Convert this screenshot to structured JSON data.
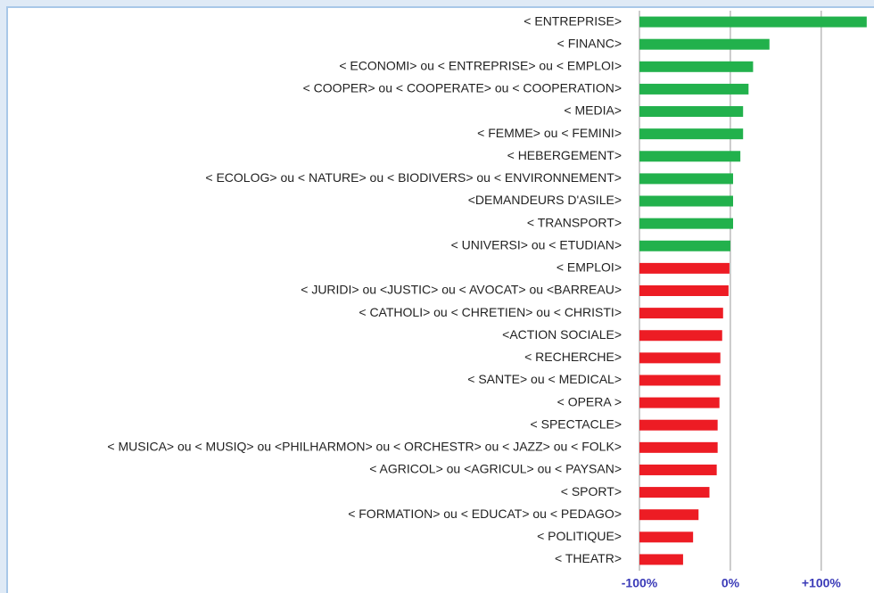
{
  "chart_data": {
    "type": "bar",
    "orientation": "horizontal",
    "categories": [
      "< ENTREPRISE>",
      "< FINANC>",
      "< ECONOMI> ou < ENTREPRISE> ou < EMPLOI>",
      "< COOPER> ou < COOPERATE> ou < COOPERATION>",
      "< MEDIA>",
      "< FEMME> ou < FEMINI>",
      "< HEBERGEMENT>",
      "< ECOLOG> ou < NATURE> ou < BIODIVERS> ou < ENVIRONNEMENT>",
      "<DEMANDEURS D'ASILE>",
      "< TRANSPORT>",
      "< UNIVERSI> ou < ETUDIAN>",
      "< EMPLOI>",
      "< JURIDI> ou <JUSTIC> ou < AVOCAT> ou <BARREAU>",
      "< CATHOLI> ou < CHRETIEN> ou < CHRISTI>",
      "<ACTION SOCIALE>",
      "< RECHERCHE>",
      "< SANTE> ou < MEDICAL>",
      "< OPERA >",
      "< SPECTACLE>",
      "< MUSICA> ou < MUSIQ> ou <PHILHARMON> ou < ORCHESTR> ou < JAZZ> ou < FOLK>",
      "< AGRICOL> ou <AGRICUL> ou < PAYSAN>",
      "< SPORT>",
      "< FORMATION> ou < EDUCAT> ou < PEDAGO>",
      "< POLITIQUE>",
      "< THEATR>"
    ],
    "values": [
      150,
      43,
      25,
      20,
      14,
      14,
      11,
      3,
      3,
      3,
      0,
      -1,
      -2,
      -8,
      -9,
      -11,
      -11,
      -12,
      -14,
      -14,
      -15,
      -23,
      -35,
      -41,
      -52
    ],
    "positive_color": "#22b14c",
    "negative_color": "#ed1c24",
    "xlim": [
      -100,
      158
    ],
    "xticks": [
      {
        "value": -100,
        "label": "-100%"
      },
      {
        "value": 0,
        "label": "0%"
      },
      {
        "value": 100,
        "label": "+100%"
      }
    ],
    "grid": true
  }
}
